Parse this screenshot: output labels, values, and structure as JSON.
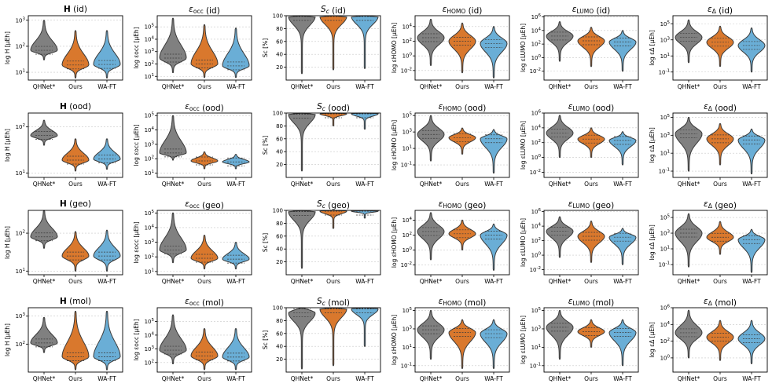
{
  "colors": {
    "QHNet*": "#808080",
    "Ours": "#d9782d",
    "WA-FT": "#6aaed6",
    "edge": "#3a3a3a",
    "grid": "#c8c8c8"
  },
  "chart_data": [
    {
      "type": "violin",
      "title": "H (id)",
      "ylabel": "log H [μEh]",
      "yscale": "log",
      "ylim": [
        5,
        1500
      ],
      "ytick_labels": [
        "10^1",
        "10^2",
        "10^3"
      ],
      "categories": [
        "QHNet*",
        "Ours",
        "WA-FT"
      ],
      "series": [
        {
          "name": "QHNet*",
          "min": 30,
          "median": 70,
          "max": 1000
        },
        {
          "name": "Ours",
          "min": 6,
          "median": 19,
          "max": 400
        },
        {
          "name": "WA-FT",
          "min": 6,
          "median": 20,
          "max": 400
        }
      ]
    },
    {
      "type": "violin",
      "title": "εocc (id)",
      "ylabel": "log εocc [μEh]",
      "yscale": "log",
      "ylim": [
        5,
        800000
      ],
      "ytick_labels": [
        "10^1",
        "10^2",
        "10^3",
        "10^4",
        "10^5"
      ],
      "categories": [
        "QHNet*",
        "Ours",
        "WA-FT"
      ],
      "series": [
        {
          "name": "QHNet*",
          "min": 20,
          "median": 300,
          "max": 500000
        },
        {
          "name": "Ours",
          "min": 8,
          "median": 100,
          "max": 150000
        },
        {
          "name": "WA-FT",
          "min": 8,
          "median": 70,
          "max": 80000
        }
      ]
    },
    {
      "type": "violin",
      "title": "Sc (id)",
      "ylabel": "Sc [%]",
      "yscale": "linear",
      "ylim": [
        0,
        100
      ],
      "ytick_labels": [
        "20",
        "40",
        "60",
        "80",
        "100"
      ],
      "categories": [
        "QHNet*",
        "Ours",
        "WA-FT"
      ],
      "series": [
        {
          "name": "QHNet*",
          "min": 10,
          "median": 99,
          "max": 100
        },
        {
          "name": "Ours",
          "min": 16,
          "median": 100,
          "max": 100
        },
        {
          "name": "WA-FT",
          "min": 18,
          "median": 100,
          "max": 100
        }
      ]
    },
    {
      "type": "violin",
      "title": "εHOMO (id)",
      "ylabel": "log εHOMO [μEh]",
      "yscale": "log",
      "ylim": [
        0.0005,
        300000
      ],
      "ytick_labels": [
        "10^-2",
        "10^0",
        "10^2",
        "10^4"
      ],
      "categories": [
        "QHNet*",
        "Ours",
        "WA-FT"
      ],
      "series": [
        {
          "name": "QHNet*",
          "min": 0.05,
          "median": 300,
          "max": 100000
        },
        {
          "name": "Ours",
          "min": 0.005,
          "median": 100,
          "max": 30000
        },
        {
          "name": "WA-FT",
          "min": 0.001,
          "median": 50,
          "max": 10000
        }
      ]
    },
    {
      "type": "violin",
      "title": "εLUMO (id)",
      "ylabel": "log εLUMO [μEh]",
      "yscale": "log",
      "ylim": [
        0.0005,
        1500000
      ],
      "ytick_labels": [
        "10^-2",
        "10^0",
        "10^2",
        "10^4",
        "10^6"
      ],
      "categories": [
        "QHNet*",
        "Ours",
        "WA-FT"
      ],
      "series": [
        {
          "name": "QHNet*",
          "min": 0.3,
          "median": 1500,
          "max": 200000
        },
        {
          "name": "Ours",
          "min": 0.05,
          "median": 300,
          "max": 30000
        },
        {
          "name": "WA-FT",
          "min": 0.01,
          "median": 200,
          "max": 10000
        }
      ]
    },
    {
      "type": "violin",
      "title": "εΔ (id)",
      "ylabel": "log εΔ [μEh]",
      "yscale": "log",
      "ylim": [
        0.01,
        1000000
      ],
      "ytick_labels": [
        "10^-1",
        "10^1",
        "10^3",
        "10^5"
      ],
      "categories": [
        "QHNet*",
        "Ours",
        "WA-FT"
      ],
      "series": [
        {
          "name": "QHNet*",
          "min": 1.5,
          "median": 2000,
          "max": 300000
        },
        {
          "name": "Ours",
          "min": 0.5,
          "median": 500,
          "max": 50000
        },
        {
          "name": "WA-FT",
          "min": 0.1,
          "median": 200,
          "max": 30000
        }
      ]
    },
    {
      "type": "violin",
      "title": "H (ood)",
      "ylabel": "log H [μEh]",
      "yscale": "log",
      "ylim": [
        8,
        200
      ],
      "ytick_labels": [
        "10^1",
        "10^2"
      ],
      "categories": [
        "QHNet*",
        "Ours",
        "WA-FT"
      ],
      "series": [
        {
          "name": "QHNet*",
          "min": 40,
          "median": 65,
          "max": 140
        },
        {
          "name": "Ours",
          "min": 11,
          "median": 19,
          "max": 55
        },
        {
          "name": "WA-FT",
          "min": 12,
          "median": 20,
          "max": 55
        }
      ]
    },
    {
      "type": "violin",
      "title": "εocc (ood)",
      "ylabel": "log εocc [μEh]",
      "yscale": "log",
      "ylim": [
        5,
        150000
      ],
      "ytick_labels": [
        "10^1",
        "10^2",
        "10^3",
        "10^4",
        "10^5"
      ],
      "categories": [
        "QHNet*",
        "Ours",
        "WA-FT"
      ],
      "series": [
        {
          "name": "QHNet*",
          "min": 80,
          "median": 250,
          "max": 100000
        },
        {
          "name": "Ours",
          "min": 20,
          "median": 70,
          "max": 300
        },
        {
          "name": "WA-FT",
          "min": 20,
          "median": 60,
          "max": 200
        }
      ]
    },
    {
      "type": "violin",
      "title": "Sc (ood)",
      "ylabel": "Sc [%]",
      "yscale": "linear",
      "ylim": [
        0,
        100
      ],
      "ytick_labels": [
        "20",
        "40",
        "60",
        "80",
        "100"
      ],
      "categories": [
        "QHNet*",
        "Ours",
        "WA-FT"
      ],
      "series": [
        {
          "name": "QHNet*",
          "min": 10,
          "median": 98,
          "max": 100
        },
        {
          "name": "Ours",
          "min": 80,
          "median": 99,
          "max": 100
        },
        {
          "name": "WA-FT",
          "min": 75,
          "median": 99,
          "max": 100
        }
      ]
    },
    {
      "type": "violin",
      "title": "εHOMO (ood)",
      "ylabel": "log εHOMO [μEh]",
      "yscale": "log",
      "ylim": [
        0.003,
        200000
      ],
      "ytick_labels": [
        "10^-1",
        "10^1",
        "10^3",
        "10^5"
      ],
      "categories": [
        "QHNet*",
        "Ours",
        "WA-FT"
      ],
      "series": [
        {
          "name": "QHNet*",
          "min": 0.3,
          "median": 500,
          "max": 100000
        },
        {
          "name": "Ours",
          "min": 2,
          "median": 200,
          "max": 3000
        },
        {
          "name": "WA-FT",
          "min": 0.01,
          "median": 150,
          "max": 2000
        }
      ]
    },
    {
      "type": "violin",
      "title": "εLUMO (ood)",
      "ylabel": "log εLUMO [μEh]",
      "yscale": "log",
      "ylim": [
        0.002,
        1000000
      ],
      "ytick_labels": [
        "10^-2",
        "10^0",
        "10^2",
        "10^4",
        "10^6"
      ],
      "categories": [
        "QHNet*",
        "Ours",
        "WA-FT"
      ],
      "series": [
        {
          "name": "QHNet*",
          "min": 1,
          "median": 2000,
          "max": 500000
        },
        {
          "name": "Ours",
          "min": 1,
          "median": 300,
          "max": 10000
        },
        {
          "name": "WA-FT",
          "min": 0.1,
          "median": 200,
          "max": 3000
        }
      ]
    },
    {
      "type": "violin",
      "title": "εΔ (ood)",
      "ylabel": "log εΔ [μEh]",
      "yscale": "log",
      "ylim": [
        0.02,
        300000
      ],
      "ytick_labels": [
        "10^-1",
        "10^1",
        "10^3",
        "10^5"
      ],
      "categories": [
        "QHNet*",
        "Ours",
        "WA-FT"
      ],
      "series": [
        {
          "name": "QHNet*",
          "min": 0.1,
          "median": 1500,
          "max": 100000
        },
        {
          "name": "Ours",
          "min": 0.5,
          "median": 400,
          "max": 20000
        },
        {
          "name": "WA-FT",
          "min": 0.05,
          "median": 300,
          "max": 5000
        }
      ]
    },
    {
      "type": "violin",
      "title": "H (geo)",
      "ylabel": "log H [μEh]",
      "yscale": "log",
      "ylim": [
        8,
        400
      ],
      "ytick_labels": [
        "10^1",
        "10^2"
      ],
      "categories": [
        "QHNet*",
        "Ours",
        "WA-FT"
      ],
      "series": [
        {
          "name": "QHNet*",
          "min": 40,
          "median": 80,
          "max": 400
        },
        {
          "name": "Ours",
          "min": 10,
          "median": 25,
          "max": 110
        },
        {
          "name": "WA-FT",
          "min": 10,
          "median": 25,
          "max": 120
        }
      ]
    },
    {
      "type": "violin",
      "title": "εocc (geo)",
      "ylabel": "log εocc [μEh]",
      "yscale": "log",
      "ylim": [
        6,
        150000
      ],
      "ytick_labels": [
        "10^1",
        "10^2",
        "10^3",
        "10^4",
        "10^5"
      ],
      "categories": [
        "QHNet*",
        "Ours",
        "WA-FT"
      ],
      "series": [
        {
          "name": "QHNet*",
          "min": 40,
          "median": 300,
          "max": 100000
        },
        {
          "name": "Ours",
          "min": 15,
          "median": 80,
          "max": 3000
        },
        {
          "name": "WA-FT",
          "min": 15,
          "median": 70,
          "max": 1000
        }
      ]
    },
    {
      "type": "violin",
      "title": "Sc (geo)",
      "ylabel": "Sc [%]",
      "yscale": "linear",
      "ylim": [
        0,
        100
      ],
      "ytick_labels": [
        "20",
        "40",
        "60",
        "80",
        "100"
      ],
      "categories": [
        "QHNet*",
        "Ours",
        "WA-FT"
      ],
      "series": [
        {
          "name": "QHNet*",
          "min": 10,
          "median": 98,
          "max": 100
        },
        {
          "name": "Ours",
          "min": 72,
          "median": 99,
          "max": 100
        },
        {
          "name": "WA-FT",
          "min": 88,
          "median": 99,
          "max": 100
        }
      ]
    },
    {
      "type": "violin",
      "title": "εHOMO (geo)",
      "ylabel": "log εHOMO [μEh]",
      "yscale": "log",
      "ylim": [
        0.0005,
        200000
      ],
      "ytick_labels": [
        "10^-2",
        "10^0",
        "10^2",
        "10^4"
      ],
      "categories": [
        "QHNet*",
        "Ours",
        "WA-FT"
      ],
      "series": [
        {
          "name": "QHNet*",
          "min": 0.05,
          "median": 300,
          "max": 100000
        },
        {
          "name": "Ours",
          "min": 1,
          "median": 150,
          "max": 10000
        },
        {
          "name": "WA-FT",
          "min": 0.002,
          "median": 100,
          "max": 3000
        }
      ]
    },
    {
      "type": "violin",
      "title": "εLUMO (geo)",
      "ylabel": "log εLUMO [μEh]",
      "yscale": "log",
      "ylim": [
        0.002,
        1500000
      ],
      "ytick_labels": [
        "10^-2",
        "10^0",
        "10^2",
        "10^4",
        "10^6"
      ],
      "categories": [
        "QHNet*",
        "Ours",
        "WA-FT"
      ],
      "series": [
        {
          "name": "QHNet*",
          "min": 0.5,
          "median": 2000,
          "max": 200000
        },
        {
          "name": "Ours",
          "min": 0.1,
          "median": 400,
          "max": 50000
        },
        {
          "name": "WA-FT",
          "min": 0.05,
          "median": 300,
          "max": 5000
        }
      ]
    },
    {
      "type": "violin",
      "title": "εΔ (geo)",
      "ylabel": "log εΔ [μEh]",
      "yscale": "log",
      "ylim": [
        0.005,
        800000
      ],
      "ytick_labels": [
        "10^-1",
        "10^1",
        "10^3",
        "10^5"
      ],
      "categories": [
        "QHNet*",
        "Ours",
        "WA-FT"
      ],
      "series": [
        {
          "name": "QHNet*",
          "min": 0.05,
          "median": 1000,
          "max": 300000
        },
        {
          "name": "Ours",
          "min": 2,
          "median": 300,
          "max": 30000
        },
        {
          "name": "WA-FT",
          "min": 0.01,
          "median": 150,
          "max": 3000
        }
      ]
    },
    {
      "type": "violin",
      "title": "H (mol)",
      "ylabel": "log H [μEh]",
      "yscale": "log",
      "ylim": [
        10,
        2000
      ],
      "ytick_labels": [
        "10^2",
        "10^3"
      ],
      "categories": [
        "QHNet*",
        "Ours",
        "WA-FT"
      ],
      "series": [
        {
          "name": "QHNet*",
          "min": 50,
          "median": 110,
          "max": 900
        },
        {
          "name": "Ours",
          "min": 12,
          "median": 35,
          "max": 1500
        },
        {
          "name": "WA-FT",
          "min": 12,
          "median": 35,
          "max": 1500
        }
      ]
    },
    {
      "type": "violin",
      "title": "εocc (mol)",
      "ylabel": "log εocc [μEh]",
      "yscale": "log",
      "ylim": [
        20,
        1000000
      ],
      "ytick_labels": [
        "10^2",
        "10^3",
        "10^4",
        "10^5"
      ],
      "categories": [
        "QHNet*",
        "Ours",
        "WA-FT"
      ],
      "series": [
        {
          "name": "QHNet*",
          "min": 80,
          "median": 800,
          "max": 300000
        },
        {
          "name": "Ours",
          "min": 30,
          "median": 300,
          "max": 30000
        },
        {
          "name": "WA-FT",
          "min": 30,
          "median": 250,
          "max": 30000
        }
      ]
    },
    {
      "type": "violin",
      "title": "Sc (mol)",
      "ylabel": "Sc [%]",
      "yscale": "linear",
      "ylim": [
        0,
        100
      ],
      "ytick_labels": [
        "20",
        "40",
        "60",
        "80",
        "100"
      ],
      "categories": [
        "QHNet*",
        "Ours",
        "WA-FT"
      ],
      "series": [
        {
          "name": "QHNet*",
          "min": 5,
          "median": 92,
          "max": 100
        },
        {
          "name": "Ours",
          "min": 10,
          "median": 98,
          "max": 100
        },
        {
          "name": "WA-FT",
          "min": 40,
          "median": 98,
          "max": 100
        }
      ]
    },
    {
      "type": "violin",
      "title": "εHOMO (mol)",
      "ylabel": "log εHOMO [μEh]",
      "yscale": "log",
      "ylim": [
        0.02,
        200000
      ],
      "ytick_labels": [
        "10^-1",
        "10^1",
        "10^3",
        "10^5"
      ],
      "categories": [
        "QHNet*",
        "Ours",
        "WA-FT"
      ],
      "series": [
        {
          "name": "QHNet*",
          "min": 0.5,
          "median": 800,
          "max": 100000
        },
        {
          "name": "Ours",
          "min": 0.05,
          "median": 400,
          "max": 10000
        },
        {
          "name": "WA-FT",
          "min": 0.05,
          "median": 300,
          "max": 10000
        }
      ]
    },
    {
      "type": "violin",
      "title": "εLUMO (mol)",
      "ylabel": "log εLUMO [μEh]",
      "yscale": "log",
      "ylim": [
        0.02,
        200000
      ],
      "ytick_labels": [
        "10^-1",
        "10^1",
        "10^3",
        "10^5"
      ],
      "categories": [
        "QHNet*",
        "Ours",
        "WA-FT"
      ],
      "series": [
        {
          "name": "QHNet*",
          "min": 0.5,
          "median": 1500,
          "max": 100000
        },
        {
          "name": "Ours",
          "min": 10,
          "median": 500,
          "max": 10000
        },
        {
          "name": "WA-FT",
          "min": 0.1,
          "median": 400,
          "max": 10000
        }
      ]
    },
    {
      "type": "violin",
      "title": "εΔ (mol)",
      "ylabel": "log εΔ [μEh]",
      "yscale": "log",
      "ylim": [
        0.02,
        1000000
      ],
      "ytick_labels": [
        "10^0",
        "10^2",
        "10^4",
        "10^6"
      ],
      "categories": [
        "QHNet*",
        "Ours",
        "WA-FT"
      ],
      "series": [
        {
          "name": "QHNet*",
          "min": 1,
          "median": 1000,
          "max": 500000
        },
        {
          "name": "Ours",
          "min": 0.5,
          "median": 300,
          "max": 30000
        },
        {
          "name": "WA-FT",
          "min": 0.2,
          "median": 200,
          "max": 30000
        }
      ]
    }
  ]
}
